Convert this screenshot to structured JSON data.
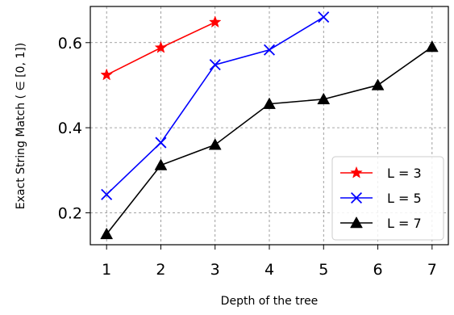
{
  "chart_data": {
    "type": "line",
    "xlabel": "Depth of the tree",
    "ylabel": "Exact String Match ( ∈ [0, 1])",
    "x_ticks": [
      "1",
      "2",
      "3",
      "4",
      "5",
      "6",
      "7"
    ],
    "y_ticks": [
      "0.2",
      "0.4",
      "0.6"
    ],
    "xlim": [
      0.7,
      7.3
    ],
    "ylim": [
      0.125,
      0.685
    ],
    "grid": true,
    "legend_position": "bottom-right",
    "series": [
      {
        "name": "L = 3",
        "color": "#ff0000",
        "marker": "star",
        "x": [
          1,
          2,
          3
        ],
        "y": [
          0.524,
          0.588,
          0.648
        ]
      },
      {
        "name": "L = 5",
        "color": "#0000ff",
        "marker": "x",
        "x": [
          1,
          2,
          3,
          4,
          5
        ],
        "y": [
          0.243,
          0.365,
          0.548,
          0.583,
          0.66
        ]
      },
      {
        "name": "L = 7",
        "color": "#000000",
        "marker": "triangle",
        "x": [
          1,
          2,
          3,
          4,
          5,
          6,
          7
        ],
        "y": [
          0.15,
          0.312,
          0.36,
          0.456,
          0.467,
          0.5,
          0.59
        ]
      }
    ]
  }
}
